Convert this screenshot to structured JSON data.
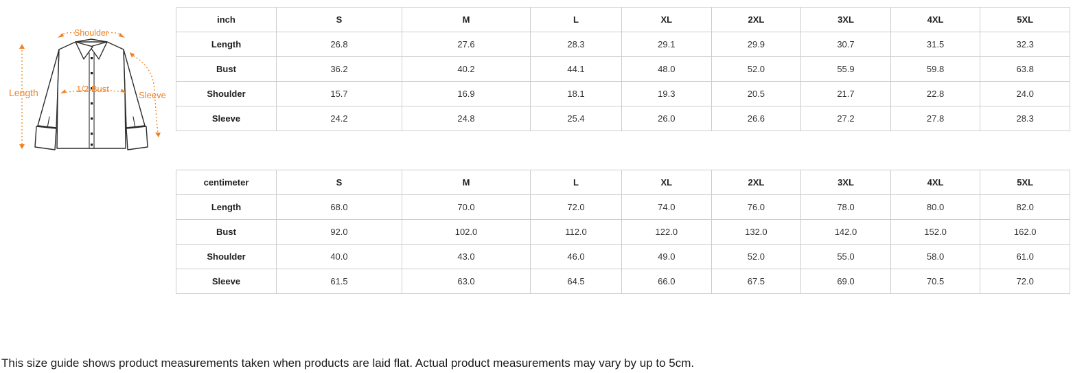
{
  "diagram": {
    "labels": {
      "shoulder": "Shoulder",
      "length": "Length",
      "bust": "1/2 Bust",
      "sleeve": "Sleeve"
    }
  },
  "tables": [
    {
      "unit_label": "inch",
      "sizes": [
        "S",
        "M",
        "L",
        "XL",
        "2XL",
        "3XL",
        "4XL",
        "5XL"
      ],
      "rows": [
        {
          "label": "Length",
          "values": [
            "26.8",
            "27.6",
            "28.3",
            "29.1",
            "29.9",
            "30.7",
            "31.5",
            "32.3"
          ]
        },
        {
          "label": "Bust",
          "values": [
            "36.2",
            "40.2",
            "44.1",
            "48.0",
            "52.0",
            "55.9",
            "59.8",
            "63.8"
          ]
        },
        {
          "label": "Shoulder",
          "values": [
            "15.7",
            "16.9",
            "18.1",
            "19.3",
            "20.5",
            "21.7",
            "22.8",
            "24.0"
          ]
        },
        {
          "label": "Sleeve",
          "values": [
            "24.2",
            "24.8",
            "25.4",
            "26.0",
            "26.6",
            "27.2",
            "27.8",
            "28.3"
          ]
        }
      ]
    },
    {
      "unit_label": "centimeter",
      "sizes": [
        "S",
        "M",
        "L",
        "XL",
        "2XL",
        "3XL",
        "4XL",
        "5XL"
      ],
      "rows": [
        {
          "label": "Length",
          "values": [
            "68.0",
            "70.0",
            "72.0",
            "74.0",
            "76.0",
            "78.0",
            "80.0",
            "82.0"
          ]
        },
        {
          "label": "Bust",
          "values": [
            "92.0",
            "102.0",
            "112.0",
            "122.0",
            "132.0",
            "142.0",
            "152.0",
            "162.0"
          ]
        },
        {
          "label": "Shoulder",
          "values": [
            "40.0",
            "43.0",
            "46.0",
            "49.0",
            "52.0",
            "55.0",
            "58.0",
            "61.0"
          ]
        },
        {
          "label": "Sleeve",
          "values": [
            "61.5",
            "63.0",
            "64.5",
            "66.0",
            "67.5",
            "69.0",
            "70.5",
            "72.0"
          ]
        }
      ]
    }
  ],
  "footer": {
    "note": "This size guide shows product measurements taken when products are laid flat. Actual product measurements may vary by up to 5cm."
  },
  "colors": {
    "accent": "#F08121",
    "table_border": "#CCCCCC",
    "text": "#333333"
  }
}
